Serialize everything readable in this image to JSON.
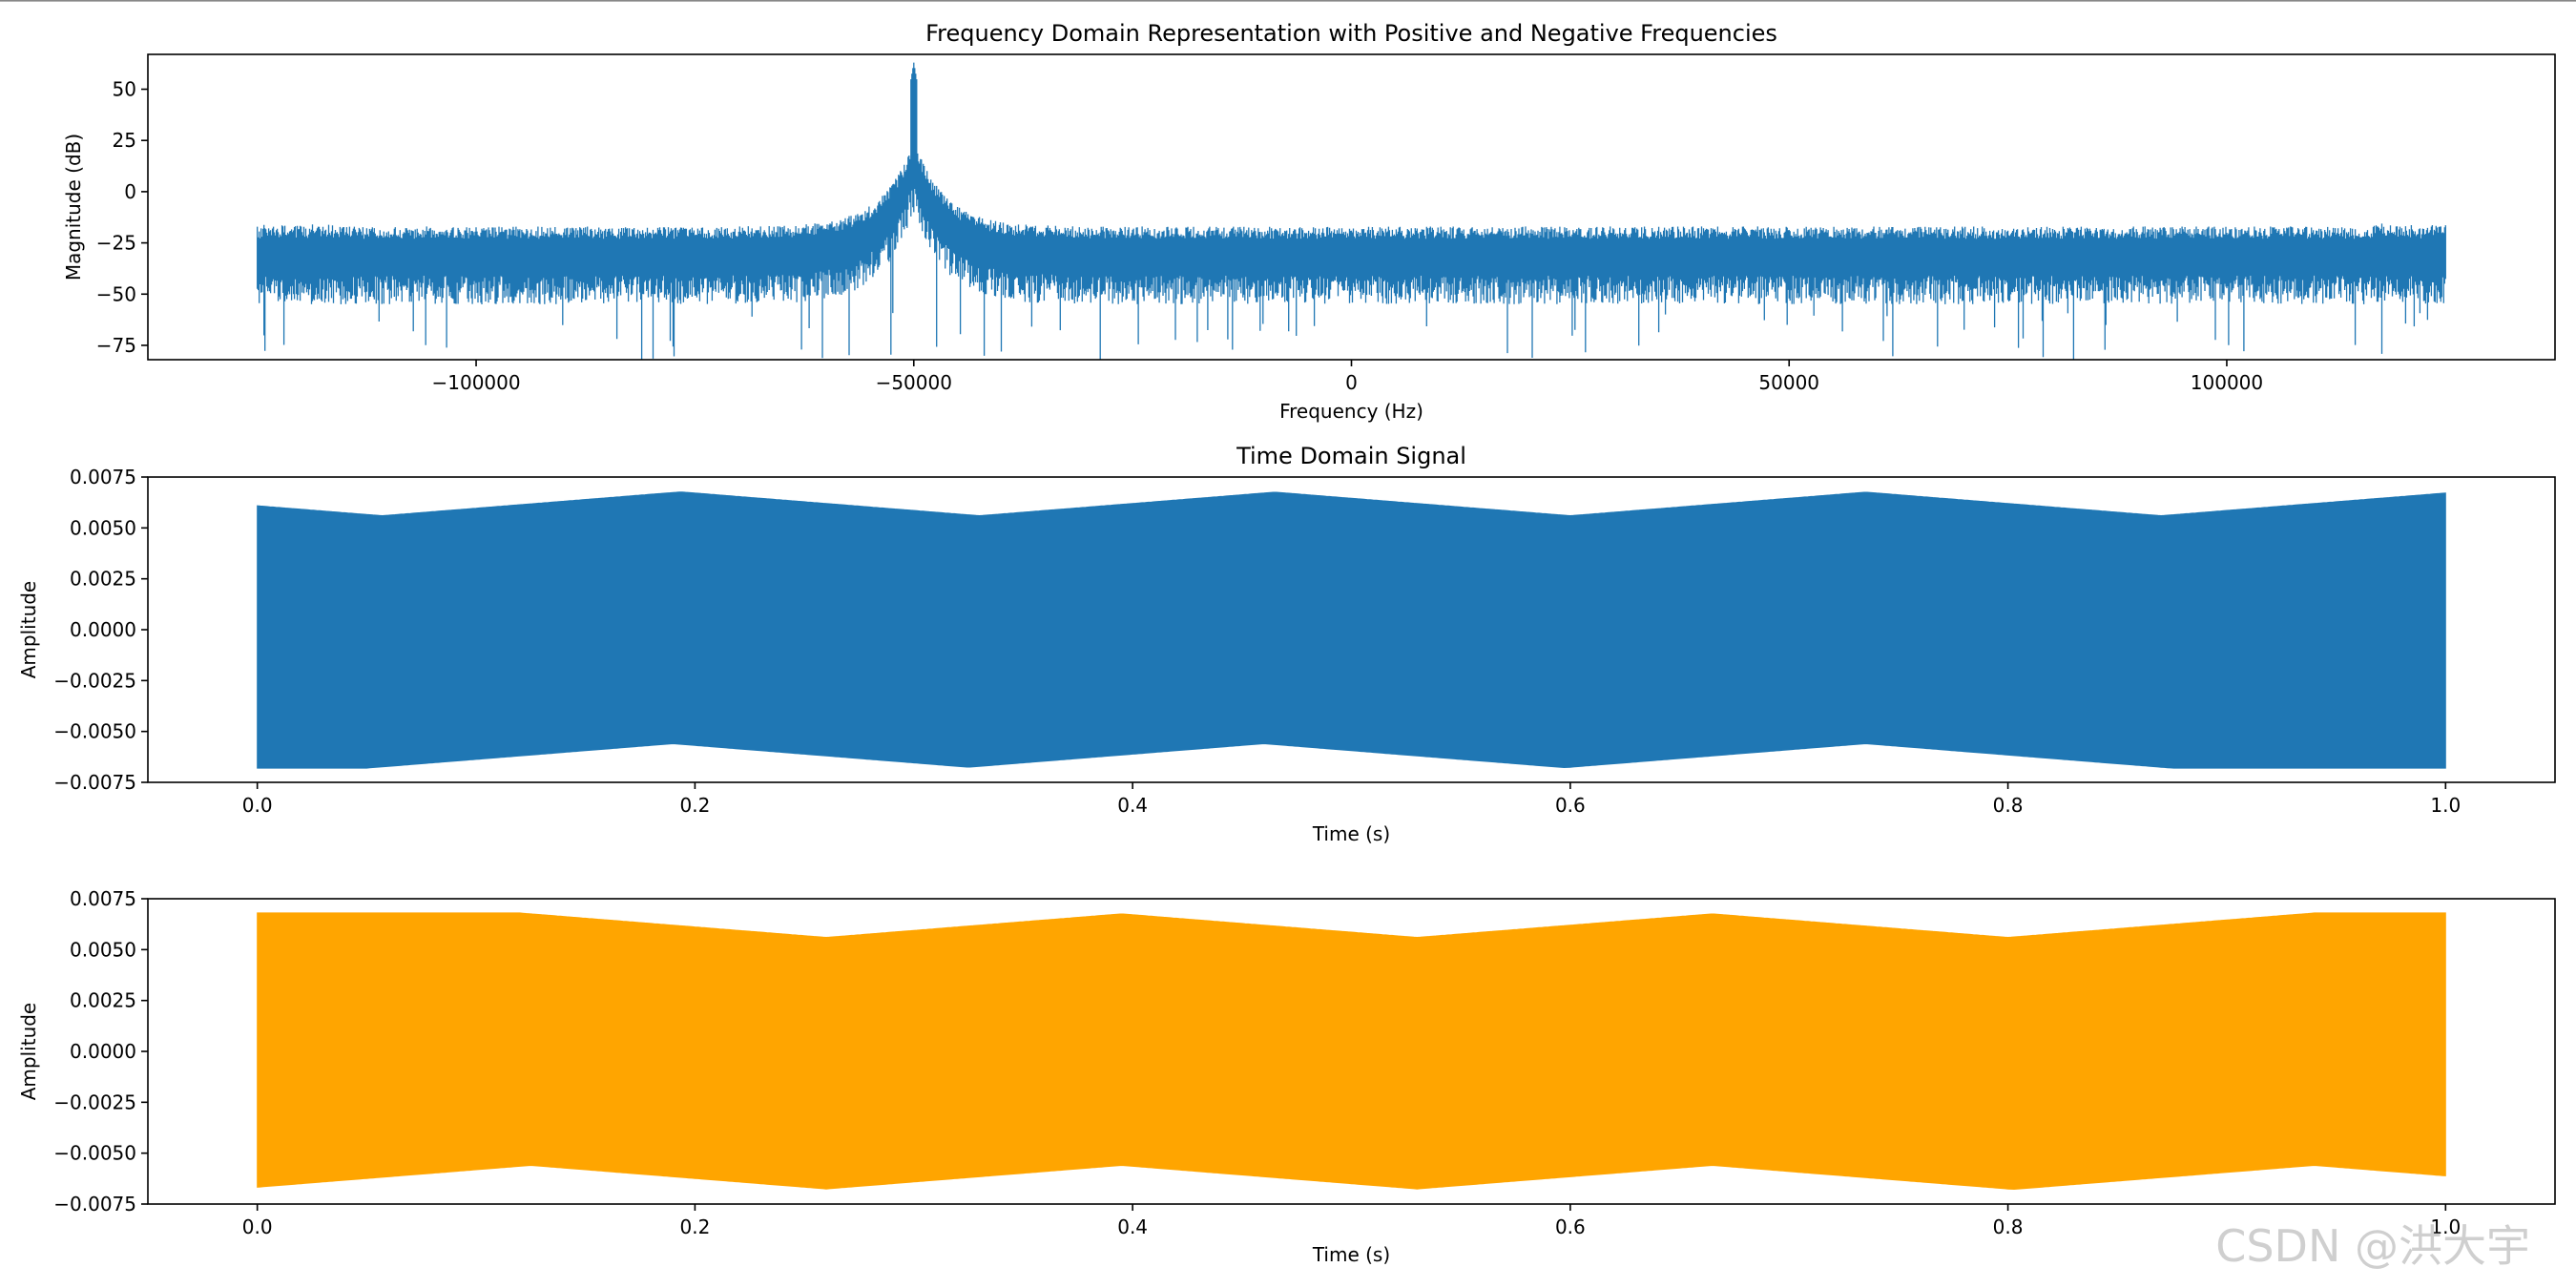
{
  "colors": {
    "spectrum": "#1f77b4",
    "signal_1": "#1f77b4",
    "signal_2": "#ffa500",
    "background": "#ffffff",
    "watermark": "#cfcfcf"
  },
  "watermark": "CSDN @洪大宇",
  "chart_data": [
    {
      "type": "line",
      "name": "spectrum",
      "title": "Frequency Domain Representation with Positive and Negative Frequencies",
      "xlabel": "Frequency (Hz)",
      "ylabel": "Magnitude (dB)",
      "xlim": [
        -137500,
        137500
      ],
      "ylim": [
        -82,
        67
      ],
      "xticks": [
        -100000,
        -50000,
        0,
        50000,
        100000
      ],
      "xtick_labels": [
        "−100000",
        "−50000",
        "0",
        "50000",
        "100000"
      ],
      "yticks": [
        50,
        25,
        0,
        -25,
        -50,
        -75
      ],
      "ytick_labels": [
        "50",
        "25",
        "0",
        "−25",
        "−50",
        "−75"
      ],
      "series": [
        {
          "name": "magnitude",
          "x_range": [
            -125000,
            125000
          ],
          "peak_frequency": -50000,
          "peak_db": 63,
          "noise_floor_upper_db": -17,
          "noise_floor_lower_db": -55,
          "min_db": -79
        }
      ]
    },
    {
      "type": "area",
      "name": "time-signal-1",
      "title": "Time Domain Signal",
      "xlabel": "Time (s)",
      "ylabel": "Amplitude",
      "xlim": [
        -0.05,
        1.05
      ],
      "ylim": [
        -0.0075,
        0.0075
      ],
      "xticks": [
        0.0,
        0.2,
        0.4,
        0.6,
        0.8,
        1.0
      ],
      "xtick_labels": [
        "0.0",
        "0.2",
        "0.4",
        "0.6",
        "0.8",
        "1.0"
      ],
      "yticks": [
        0.0075,
        0.005,
        0.0025,
        0.0,
        -0.0025,
        -0.005,
        -0.0075
      ],
      "ytick_labels": [
        "0.0075",
        "0.0050",
        "0.0025",
        "0.0000",
        "−0.0025",
        "−0.0050",
        "−0.0075"
      ],
      "series": [
        {
          "name": "amplitude-envelope",
          "x_range": [
            0.0,
            1.0
          ],
          "max_amplitude": 0.0068,
          "min_envelope_amplitude": 0.0056,
          "upper_dips_at": [
            0.057,
            0.33,
            0.6,
            0.87
          ],
          "lower_dips_at": [
            0.19,
            0.46,
            0.735
          ]
        }
      ]
    },
    {
      "type": "area",
      "name": "time-signal-2",
      "title": "",
      "xlabel": "Time (s)",
      "ylabel": "Amplitude",
      "xlim": [
        -0.05,
        1.05
      ],
      "ylim": [
        -0.0075,
        0.0075
      ],
      "xticks": [
        0.0,
        0.2,
        0.4,
        0.6,
        0.8,
        1.0
      ],
      "xtick_labels": [
        "0.0",
        "0.2",
        "0.4",
        "0.6",
        "0.8",
        "1.0"
      ],
      "yticks": [
        0.0075,
        0.005,
        0.0025,
        0.0,
        -0.0025,
        -0.005,
        -0.0075
      ],
      "ytick_labels": [
        "0.0075",
        "0.0050",
        "0.0025",
        "0.0000",
        "−0.0025",
        "−0.0050",
        "−0.0075"
      ],
      "series": [
        {
          "name": "amplitude-envelope",
          "x_range": [
            0.0,
            1.0
          ],
          "max_amplitude": 0.0068,
          "min_envelope_amplitude": 0.0056,
          "upper_dips_at": [
            0.26,
            0.53,
            0.8
          ],
          "lower_dips_at": [
            0.125,
            0.395,
            0.665,
            0.94
          ]
        }
      ]
    }
  ]
}
